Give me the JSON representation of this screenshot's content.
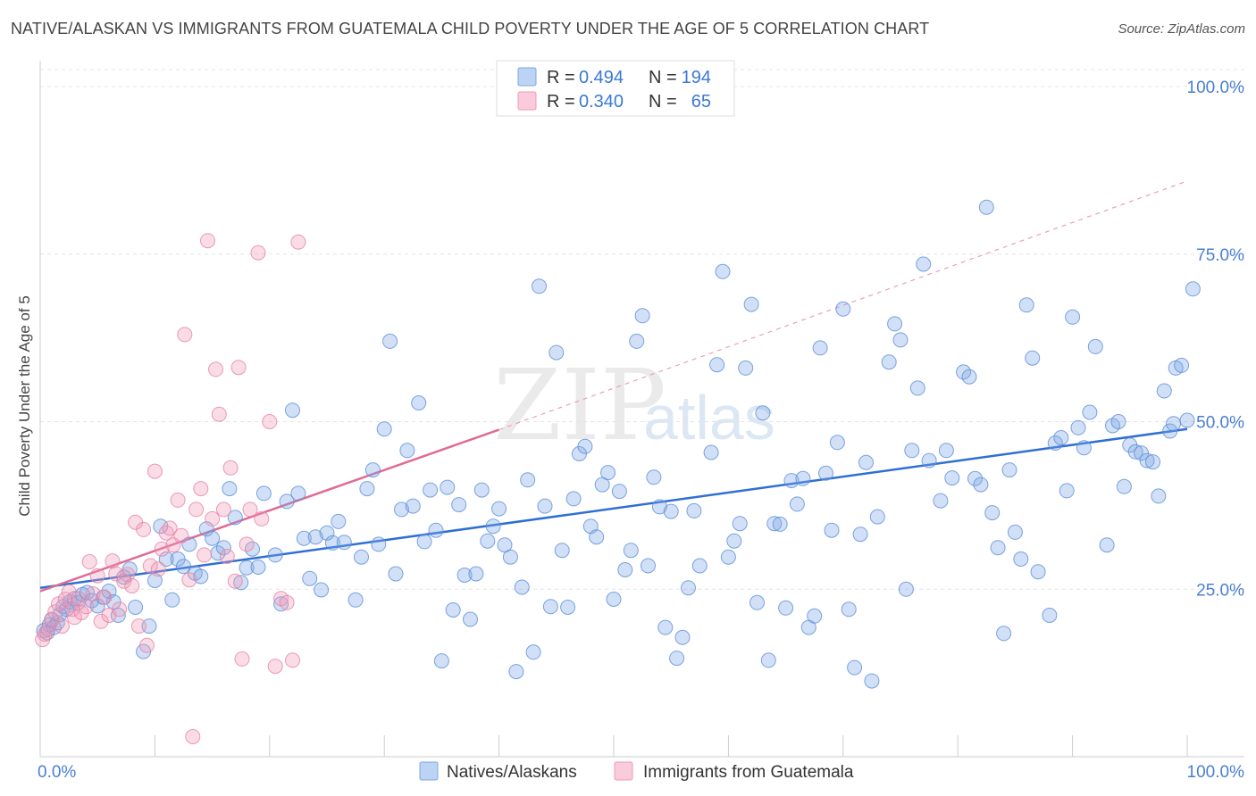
{
  "title": "NATIVE/ALASKAN VS IMMIGRANTS FROM GUATEMALA CHILD POVERTY UNDER THE AGE OF 5 CORRELATION CHART",
  "source": "Source: ZipAtlas.com",
  "watermark": {
    "zip": "ZIP",
    "atlas": "atlas"
  },
  "legend": {
    "r_label": "R =",
    "n_label": "N =",
    "rows": [
      {
        "r": "0.494",
        "n": "194",
        "color": "#7aa7e6"
      },
      {
        "r": "0.340",
        "n": "65",
        "color": "#f09ab6"
      }
    ]
  },
  "chart_data": {
    "type": "scatter",
    "title": "NATIVE/ALASKAN VS IMMIGRANTS FROM GUATEMALA CHILD POVERTY UNDER THE AGE OF 5 CORRELATION CHART",
    "xlabel": "",
    "ylabel": "Child Poverty Under the Age of 5",
    "xlim": [
      0,
      100
    ],
    "ylim": [
      0,
      105
    ],
    "x_tick_labels": {
      "left": "0.0%",
      "right": "100.0%"
    },
    "y_ticks": [
      {
        "value": 25,
        "label": "25.0%"
      },
      {
        "value": 50,
        "label": "50.0%"
      },
      {
        "value": 75,
        "label": "75.0%"
      },
      {
        "value": 100,
        "label": "100.0%"
      }
    ],
    "grid": true,
    "series": [
      {
        "name": "Natives/Alaskans",
        "color": "#7aa7e6",
        "stroke": "#5b8fd8",
        "trend": {
          "x0": 0,
          "y0": 25.2,
          "x1": 100,
          "y1": 48.9
        },
        "points": [
          [
            0.3,
            18.8
          ],
          [
            0.6,
            18.5
          ],
          [
            0.8,
            19.7
          ],
          [
            1.0,
            20.4
          ],
          [
            1.2,
            19.3
          ],
          [
            1.5,
            20.0
          ],
          [
            1.7,
            21.2
          ],
          [
            2.0,
            22.4
          ],
          [
            2.3,
            22.0
          ],
          [
            2.6,
            23.1
          ],
          [
            3.0,
            23.6
          ],
          [
            3.3,
            23.0
          ],
          [
            3.7,
            24.2
          ],
          [
            4.1,
            24.5
          ],
          [
            4.5,
            23.3
          ],
          [
            5.0,
            22.5
          ],
          [
            5.5,
            23.8
          ],
          [
            6.0,
            24.7
          ],
          [
            6.4,
            23.1
          ],
          [
            6.8,
            21.1
          ],
          [
            7.3,
            26.8
          ],
          [
            7.8,
            28.0
          ],
          [
            8.3,
            22.3
          ],
          [
            9.0,
            15.7
          ],
          [
            9.5,
            19.5
          ],
          [
            10.0,
            26.3
          ],
          [
            10.5,
            34.4
          ],
          [
            11.0,
            29.5
          ],
          [
            11.5,
            23.4
          ],
          [
            12.0,
            29.5
          ],
          [
            12.5,
            28.4
          ],
          [
            13.0,
            31.7
          ],
          [
            13.5,
            27.4
          ],
          [
            14.0,
            26.9
          ],
          [
            14.5,
            34.0
          ],
          [
            15.0,
            32.6
          ],
          [
            15.5,
            30.4
          ],
          [
            16.0,
            31.2
          ],
          [
            16.5,
            40.0
          ],
          [
            17.0,
            35.7
          ],
          [
            17.5,
            26.0
          ],
          [
            18.0,
            28.2
          ],
          [
            18.5,
            31.0
          ],
          [
            19.0,
            28.3
          ],
          [
            19.5,
            39.3
          ],
          [
            20.5,
            30.1
          ],
          [
            21.0,
            22.8
          ],
          [
            21.5,
            38.1
          ],
          [
            22.0,
            51.7
          ],
          [
            22.5,
            39.3
          ],
          [
            23.0,
            32.6
          ],
          [
            23.5,
            26.6
          ],
          [
            24.0,
            32.8
          ],
          [
            24.5,
            24.9
          ],
          [
            25.0,
            33.4
          ],
          [
            25.5,
            31.9
          ],
          [
            26.0,
            35.1
          ],
          [
            26.5,
            32.0
          ],
          [
            27.5,
            23.4
          ],
          [
            28.0,
            29.8
          ],
          [
            28.5,
            40.0
          ],
          [
            29.0,
            42.8
          ],
          [
            29.5,
            31.7
          ],
          [
            30.0,
            48.9
          ],
          [
            30.5,
            62.0
          ],
          [
            31.0,
            27.3
          ],
          [
            31.5,
            36.9
          ],
          [
            32.0,
            45.7
          ],
          [
            32.5,
            37.4
          ],
          [
            33.0,
            52.8
          ],
          [
            33.5,
            32.1
          ],
          [
            34.0,
            39.8
          ],
          [
            34.5,
            33.8
          ],
          [
            35.0,
            14.3
          ],
          [
            35.5,
            40.2
          ],
          [
            36.0,
            21.9
          ],
          [
            36.5,
            37.6
          ],
          [
            37.0,
            27.1
          ],
          [
            37.5,
            20.5
          ],
          [
            38.0,
            27.3
          ],
          [
            38.5,
            39.8
          ],
          [
            39.0,
            32.2
          ],
          [
            39.5,
            34.4
          ],
          [
            40.0,
            37.0
          ],
          [
            40.5,
            31.6
          ],
          [
            41.0,
            29.8
          ],
          [
            41.5,
            12.7
          ],
          [
            42.0,
            25.3
          ],
          [
            42.5,
            41.3
          ],
          [
            43.0,
            15.6
          ],
          [
            43.5,
            70.2
          ],
          [
            44.0,
            37.4
          ],
          [
            44.5,
            22.4
          ],
          [
            45.0,
            60.3
          ],
          [
            45.5,
            30.8
          ],
          [
            46.0,
            22.3
          ],
          [
            46.5,
            38.5
          ],
          [
            47.0,
            45.2
          ],
          [
            47.5,
            46.3
          ],
          [
            48.0,
            34.4
          ],
          [
            48.5,
            32.8
          ],
          [
            49.0,
            40.6
          ],
          [
            49.5,
            42.4
          ],
          [
            50.0,
            23.5
          ],
          [
            50.5,
            39.6
          ],
          [
            51.0,
            27.9
          ],
          [
            51.5,
            30.8
          ],
          [
            52.0,
            62.0
          ],
          [
            52.5,
            65.8
          ],
          [
            53.0,
            28.5
          ],
          [
            53.5,
            41.7
          ],
          [
            54.0,
            37.3
          ],
          [
            54.5,
            19.3
          ],
          [
            55.0,
            36.6
          ],
          [
            55.5,
            14.7
          ],
          [
            56.0,
            17.8
          ],
          [
            56.5,
            25.2
          ],
          [
            57.0,
            36.7
          ],
          [
            57.5,
            28.5
          ],
          [
            58.5,
            45.4
          ],
          [
            59.0,
            58.5
          ],
          [
            59.5,
            72.4
          ],
          [
            60.0,
            29.8
          ],
          [
            60.5,
            32.2
          ],
          [
            61.0,
            34.8
          ],
          [
            61.5,
            58.0
          ],
          [
            62.0,
            67.5
          ],
          [
            62.5,
            23.0
          ],
          [
            63.0,
            51.3
          ],
          [
            63.5,
            14.4
          ],
          [
            64.0,
            34.8
          ],
          [
            64.5,
            34.7
          ],
          [
            65.0,
            22.2
          ],
          [
            65.5,
            41.2
          ],
          [
            66.0,
            37.7
          ],
          [
            66.5,
            41.5
          ],
          [
            67.0,
            19.3
          ],
          [
            67.5,
            21.0
          ],
          [
            68.0,
            61.0
          ],
          [
            68.5,
            42.3
          ],
          [
            69.0,
            33.8
          ],
          [
            69.5,
            46.9
          ],
          [
            70.0,
            66.8
          ],
          [
            70.5,
            22.0
          ],
          [
            71.0,
            13.3
          ],
          [
            71.5,
            33.2
          ],
          [
            72.0,
            43.9
          ],
          [
            72.5,
            11.3
          ],
          [
            73.0,
            35.8
          ],
          [
            74.0,
            58.9
          ],
          [
            74.5,
            64.6
          ],
          [
            75.0,
            62.2
          ],
          [
            75.5,
            25.0
          ],
          [
            76.0,
            45.7
          ],
          [
            76.5,
            55.0
          ],
          [
            77.0,
            73.5
          ],
          [
            77.5,
            44.2
          ],
          [
            78.5,
            38.2
          ],
          [
            79.0,
            45.7
          ],
          [
            79.5,
            41.6
          ],
          [
            80.5,
            57.4
          ],
          [
            81.0,
            56.7
          ],
          [
            81.5,
            41.5
          ],
          [
            82.0,
            40.6
          ],
          [
            82.5,
            82.0
          ],
          [
            83.0,
            36.4
          ],
          [
            83.5,
            31.2
          ],
          [
            84.0,
            18.4
          ],
          [
            84.5,
            42.8
          ],
          [
            85.0,
            33.5
          ],
          [
            85.5,
            29.5
          ],
          [
            86.0,
            67.4
          ],
          [
            86.5,
            59.5
          ],
          [
            87.0,
            27.6
          ],
          [
            88.0,
            21.1
          ],
          [
            88.5,
            46.8
          ],
          [
            89.0,
            47.6
          ],
          [
            89.5,
            39.7
          ],
          [
            90.0,
            65.6
          ],
          [
            90.5,
            49.1
          ],
          [
            91.0,
            46.1
          ],
          [
            91.5,
            51.4
          ],
          [
            92.0,
            61.2
          ],
          [
            93.0,
            31.6
          ],
          [
            93.5,
            49.4
          ],
          [
            94.0,
            50.0
          ],
          [
            94.5,
            40.3
          ],
          [
            95.0,
            46.5
          ],
          [
            95.5,
            45.5
          ],
          [
            96.0,
            45.3
          ],
          [
            96.5,
            44.2
          ],
          [
            97.0,
            44.0
          ],
          [
            97.5,
            38.9
          ],
          [
            98.0,
            54.6
          ],
          [
            98.5,
            48.6
          ],
          [
            99.0,
            58.0
          ],
          [
            99.5,
            58.4
          ],
          [
            100.0,
            50.2
          ],
          [
            100.5,
            69.8
          ],
          [
            98.8,
            49.7
          ]
        ]
      },
      {
        "name": "Immigrants from Guatemala",
        "color": "#f09ab6",
        "stroke": "#e782a3",
        "trend": {
          "x0": 0,
          "y0": 24.7,
          "x1": 40,
          "y1": 48.8
        },
        "trend_extended": {
          "x0": 40,
          "y0": 48.8,
          "x1": 100,
          "y1": 85.9
        },
        "points": [
          [
            0.2,
            17.5
          ],
          [
            0.4,
            18.3
          ],
          [
            0.7,
            19.0
          ],
          [
            1.0,
            20.5
          ],
          [
            1.3,
            21.6
          ],
          [
            1.6,
            22.8
          ],
          [
            1.9,
            19.5
          ],
          [
            2.2,
            23.5
          ],
          [
            2.5,
            24.6
          ],
          [
            2.8,
            22.0
          ],
          [
            3.0,
            20.8
          ],
          [
            3.3,
            23.6
          ],
          [
            3.6,
            21.5
          ],
          [
            4.0,
            22.4
          ],
          [
            4.3,
            29.1
          ],
          [
            4.6,
            24.3
          ],
          [
            5.0,
            27.0
          ],
          [
            5.3,
            20.2
          ],
          [
            5.6,
            23.8
          ],
          [
            6.0,
            21.1
          ],
          [
            6.3,
            29.2
          ],
          [
            6.6,
            27.3
          ],
          [
            6.9,
            22.0
          ],
          [
            7.3,
            26.2
          ],
          [
            7.6,
            27.2
          ],
          [
            8.0,
            25.5
          ],
          [
            8.3,
            35.0
          ],
          [
            8.6,
            19.5
          ],
          [
            9.0,
            33.9
          ],
          [
            9.3,
            16.6
          ],
          [
            9.6,
            28.5
          ],
          [
            10.0,
            42.6
          ],
          [
            10.3,
            28.0
          ],
          [
            10.6,
            31.0
          ],
          [
            11.0,
            33.4
          ],
          [
            11.3,
            34.1
          ],
          [
            11.6,
            31.6
          ],
          [
            12.0,
            38.3
          ],
          [
            12.3,
            33.0
          ],
          [
            12.6,
            63.0
          ],
          [
            13.0,
            26.4
          ],
          [
            13.3,
            3.0
          ],
          [
            13.6,
            36.9
          ],
          [
            14.0,
            40.0
          ],
          [
            14.3,
            30.1
          ],
          [
            14.6,
            77.0
          ],
          [
            15.0,
            35.5
          ],
          [
            15.3,
            57.8
          ],
          [
            15.6,
            51.1
          ],
          [
            16.0,
            36.9
          ],
          [
            16.3,
            29.9
          ],
          [
            16.6,
            43.1
          ],
          [
            17.0,
            26.2
          ],
          [
            17.3,
            58.1
          ],
          [
            17.6,
            14.6
          ],
          [
            18.0,
            31.7
          ],
          [
            18.3,
            36.9
          ],
          [
            19.0,
            75.2
          ],
          [
            19.3,
            35.5
          ],
          [
            20.0,
            50.0
          ],
          [
            20.5,
            13.5
          ],
          [
            21.0,
            23.6
          ],
          [
            21.5,
            23.0
          ],
          [
            22.0,
            14.4
          ],
          [
            22.5,
            76.8
          ]
        ]
      }
    ]
  },
  "bottom_legend": [
    {
      "label": "Natives/Alaskans",
      "color": "#7aa7e6"
    },
    {
      "label": "Immigrants from Guatemala",
      "color": "#f09ab6"
    }
  ]
}
